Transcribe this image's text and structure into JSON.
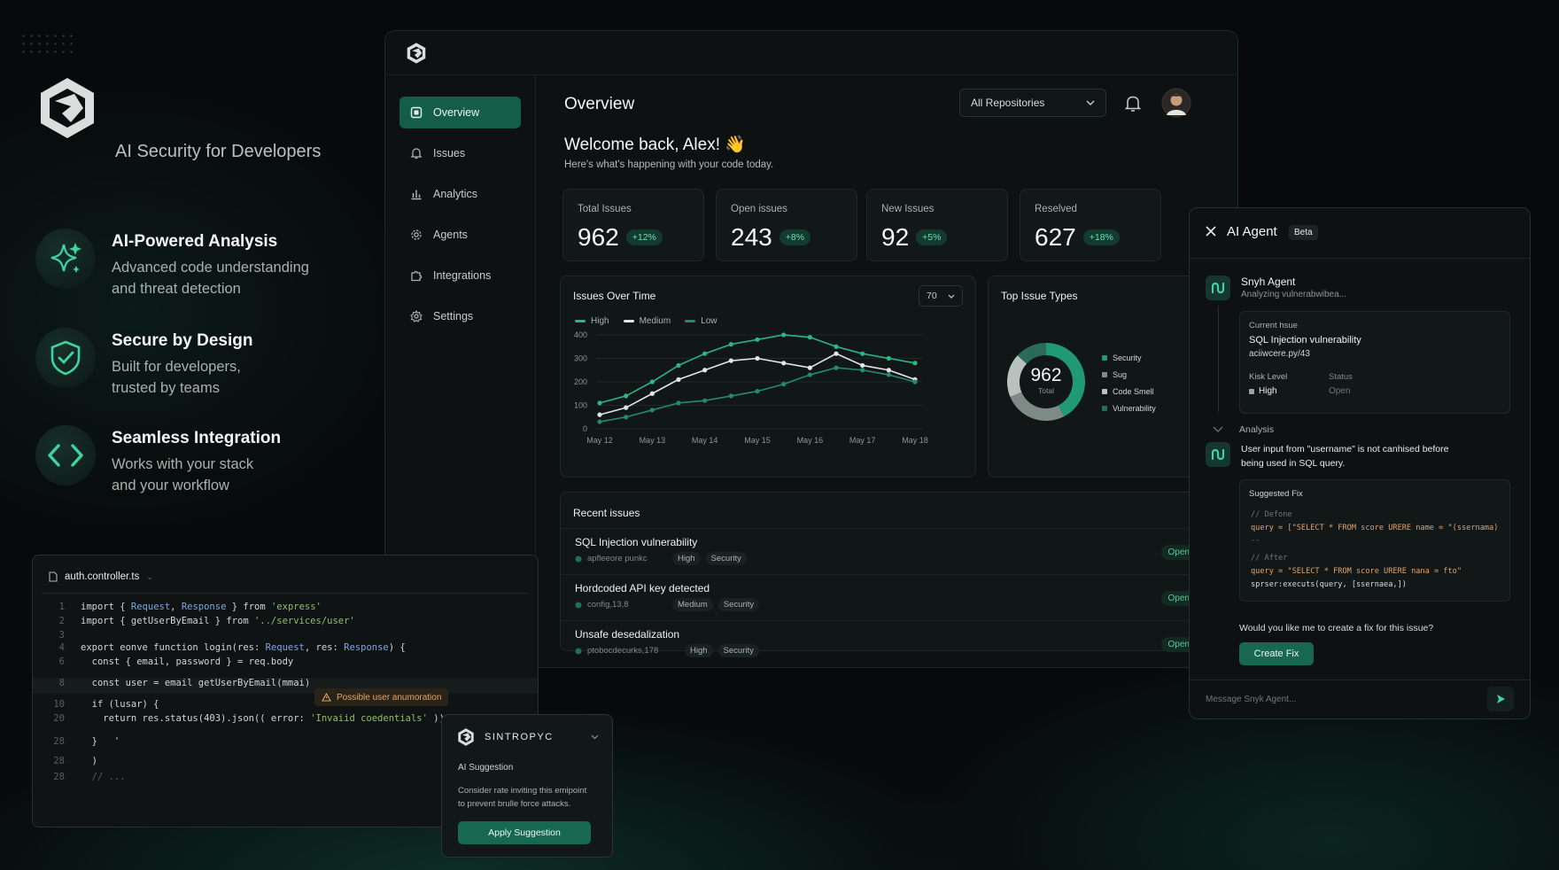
{
  "hero": {
    "tagline": "AI Security for Developers",
    "features": [
      {
        "icon": "sparkle-icon",
        "title": "AI-Powered Analysis",
        "desc1": "Advanced code understanding",
        "desc2": "and threat detection"
      },
      {
        "icon": "shield-check-icon",
        "title": "Secure by Design",
        "desc1": "Built for developers,",
        "desc2": "trusted by teams"
      },
      {
        "icon": "code-brackets-icon",
        "title": "Seamless Integration",
        "desc1": "Works with your stack",
        "desc2": "and your workflow"
      }
    ]
  },
  "sidebar": {
    "items": [
      {
        "label": "Overview",
        "icon": "grid-icon"
      },
      {
        "label": "Issues",
        "icon": "bell-icon"
      },
      {
        "label": "Analytics",
        "icon": "bar-chart-icon"
      },
      {
        "label": "Agents",
        "icon": "gear-icon"
      },
      {
        "label": "Integrations",
        "icon": "puzzle-icon"
      },
      {
        "label": "Settings",
        "icon": "settings-icon"
      }
    ]
  },
  "header": {
    "title": "Overview",
    "repo_select": "All Repositories"
  },
  "welcome": {
    "title": "Welcome back, Alex! 👋",
    "subtitle": "Here's what's happening with your code today."
  },
  "stats": [
    {
      "label": "Total Issues",
      "value": "962",
      "change": "+12%"
    },
    {
      "label": "Open issues",
      "value": "243",
      "change": "+8%"
    },
    {
      "label": "New Issues",
      "value": "92",
      "change": "+5%"
    },
    {
      "label": "Reselved",
      "value": "627",
      "change": "+18%"
    }
  ],
  "chart_panel": {
    "title": "Issues Over Time",
    "range": "70"
  },
  "chart_data": {
    "type": "line",
    "categories": [
      "May 12",
      "May 13",
      "May 14",
      "May 15",
      "May 16",
      "May 17",
      "May 18"
    ],
    "x": [
      0,
      0.5,
      1,
      1.5,
      2,
      2.5,
      3,
      3.5,
      4,
      4.5,
      5,
      5.5,
      6
    ],
    "series": [
      {
        "name": "High",
        "color": "#2fb585",
        "values": [
          110,
          140,
          200,
          270,
          320,
          360,
          380,
          400,
          390,
          350,
          320,
          300,
          280
        ]
      },
      {
        "name": "Medium",
        "color": "#e2e6e4",
        "values": [
          60,
          90,
          150,
          210,
          250,
          290,
          300,
          280,
          260,
          320,
          270,
          250,
          210
        ]
      },
      {
        "name": "Low",
        "color": "#268a68",
        "values": [
          30,
          50,
          80,
          110,
          120,
          140,
          160,
          190,
          230,
          260,
          250,
          230,
          200
        ]
      }
    ],
    "ylim": [
      0,
      400
    ],
    "yticks": [
      0,
      100,
      200,
      300,
      400
    ],
    "legend": "top-left"
  },
  "donut": {
    "title": "Top Issue Types",
    "center_value": "962",
    "center_label": "Total",
    "slices": [
      {
        "name": "Security",
        "pct": "42%",
        "value": 42,
        "color": "#1f9a72"
      },
      {
        "name": "Sug",
        "pct": "26%",
        "value": 26,
        "color": "#7e8a86"
      },
      {
        "name": "Code Smell",
        "pct": "18%",
        "value": 18,
        "color": "#b9c1be"
      },
      {
        "name": "Vulnerability",
        "pct": "13%",
        "value": 13,
        "color": "#2a6b58"
      }
    ]
  },
  "recent": {
    "title": "Recent issues",
    "items": [
      {
        "title": "SQL Injection vulnerability",
        "file": "apfleeore punkc",
        "severity": "High",
        "category": "Security",
        "status": "Open"
      },
      {
        "title": "Hordcoded API key detected",
        "file": "config,13,8",
        "severity": "Medium",
        "category": "Security",
        "status": "Open"
      },
      {
        "title": "Unsafe desedalization",
        "file": "ptobocdecurks,178",
        "severity": "High",
        "category": "Security",
        "status": "Open"
      }
    ]
  },
  "agent": {
    "title": "AI Agent",
    "badge": "Beta",
    "name": "Snyh Agent",
    "status": "Analyzing vulnerabwibea...",
    "issue_label": "Current hsue",
    "issue_title": "SQL Injection vulnerability",
    "issue_file": "aciiwcere.py/43",
    "risk_label": "Kisk Level",
    "risk_value": "High",
    "status_label": "Status",
    "status_value": "Open",
    "analysis_label": "Analysis",
    "analysis_text1": "User input from \"username\" is not canhised before",
    "analysis_text2": "being used in SQL query.",
    "fix_label": "Suggested Fix",
    "fix_lines": [
      "// Defone",
      "query = [\"SELECT * FROM score URERE name = \"(ssernama)",
      "--",
      "// After",
      "query = \"SELECT * FROM score URERE nana = fto\"",
      "sprser:executs(query, [ssernaea,])"
    ],
    "question": "Would you like me to create a fix for this issue?",
    "create_fix": "Create Fix",
    "message_placeholder": "Message Snyk Agent..."
  },
  "editor": {
    "filename": "auth.controller.ts",
    "lines": [
      {
        "n": "1",
        "code": "import { Request, Response } from 'express'"
      },
      {
        "n": "2",
        "code": "import { getUserByEmail } from '../services/user'"
      },
      {
        "n": "3",
        "code": ""
      },
      {
        "n": "4",
        "code": "export eonve function login(res: Request, res: Response) {"
      },
      {
        "n": "6",
        "code": "  const { email, password } = req.body"
      },
      {
        "n": "8",
        "code": "  const user = email getUserByEmail(mmai)"
      },
      {
        "n": "10",
        "code": "  if (lusar) {"
      },
      {
        "n": "20",
        "code": "    return res.status(403).json(( error: 'Invaiid coedentials' ))"
      },
      {
        "n": "28",
        "code": "  }   '"
      },
      {
        "n": "28",
        "code": "  )"
      },
      {
        "n": "28",
        "code": "  // ..."
      }
    ],
    "warning": "Possible user anumoration"
  },
  "suggestion": {
    "brand": "SINTROPYC",
    "label": "AI Suggestion",
    "text1": "Consider rate inviting this emipoint",
    "text2": "to prevent brulle force attacks.",
    "button": "Apply Suggestion"
  }
}
